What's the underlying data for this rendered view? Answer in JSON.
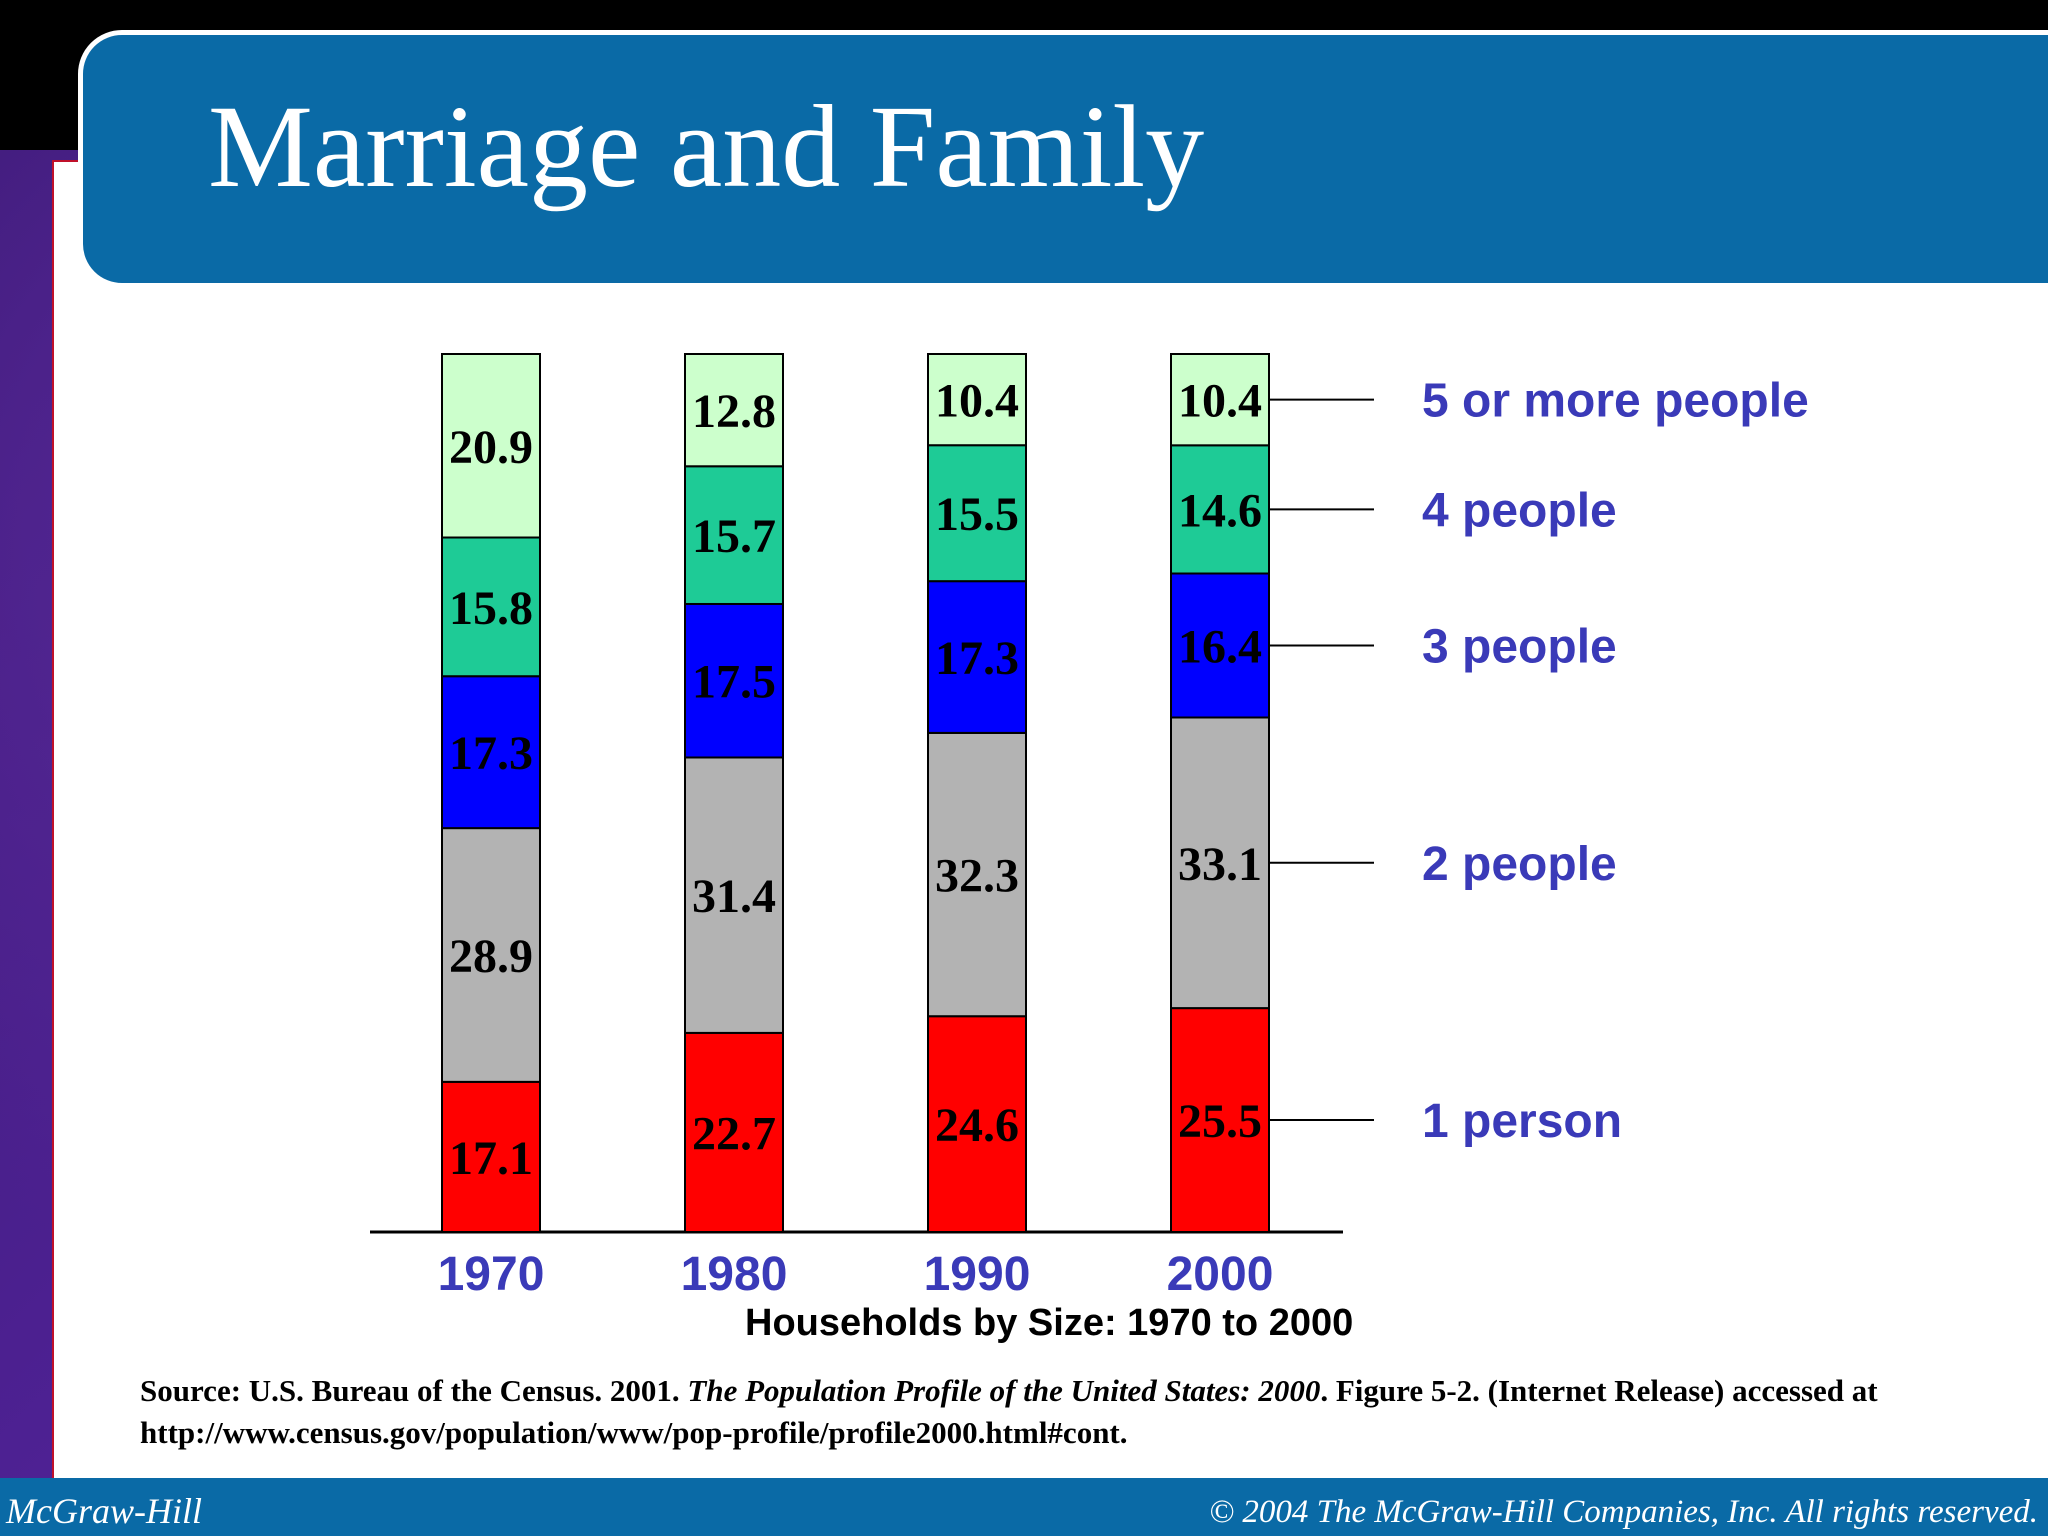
{
  "slide": {
    "title": "Marriage and Family",
    "footer_left": "McGraw-Hill",
    "footer_right": "© 2004 The McGraw-Hill Companies, Inc. All rights reserved."
  },
  "source": {
    "prefix": "Source: U.S. Bureau of the Census. 2001. ",
    "italic": "The Population Profile of the United States: 2000",
    "suffix": ". Figure 5-2. (Internet Release) accessed at http://www.census.gov/population/www/pop-profile/profile2000.html#cont."
  },
  "chart_data": {
    "type": "bar",
    "stacked": true,
    "title": "Households by Size: 1970 to 2000",
    "xlabel": "",
    "ylabel": "",
    "categories": [
      "1970",
      "1980",
      "1990",
      "2000"
    ],
    "series": [
      {
        "name": "1 person",
        "color": "#ff0000",
        "values": [
          17.1,
          22.7,
          24.6,
          25.5
        ]
      },
      {
        "name": "2 people",
        "color": "#b3b3b3",
        "values": [
          28.9,
          31.4,
          32.3,
          33.1
        ]
      },
      {
        "name": "3 people",
        "color": "#0000ff",
        "values": [
          17.3,
          17.5,
          17.3,
          16.4
        ]
      },
      {
        "name": "4 people",
        "color": "#1ecb96",
        "values": [
          15.8,
          15.7,
          15.5,
          14.6
        ]
      },
      {
        "name": "5 or more people",
        "color": "#ccffcc",
        "values": [
          20.9,
          12.8,
          10.4,
          10.4
        ]
      }
    ],
    "legend_placement": "right",
    "grid": false
  }
}
